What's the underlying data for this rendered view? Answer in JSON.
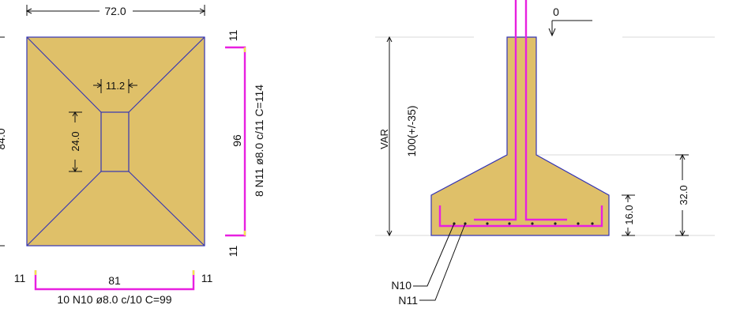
{
  "plan": {
    "width_dim": "72.0",
    "height_dim": "84.0",
    "pedestal_width_dim": "11.2",
    "pedestal_height_dim": "24.0"
  },
  "rebar_right": {
    "hook_top": "11",
    "length": "96",
    "spec": "8 N11 ø8.0 c/11 C=114",
    "hook_bottom": "11"
  },
  "rebar_bottom": {
    "hook_left": "11",
    "length": "81",
    "hook_right": "11",
    "spec": "10 N10 ø8.0 c/10 C=99"
  },
  "section": {
    "level_label": "0",
    "height_var": "VAR",
    "height_range": "100(+/-35)",
    "base_height": "16.0",
    "total_height": "32.0",
    "bar_labels": [
      "N10",
      "N11"
    ]
  },
  "colors": {
    "concrete": "#DFC069",
    "outline": "#3434B4",
    "rebar": "#E820E0",
    "hook_tip": "#F2E64A",
    "dim_line": "#111111",
    "ground_line": "#D8D8D8"
  }
}
